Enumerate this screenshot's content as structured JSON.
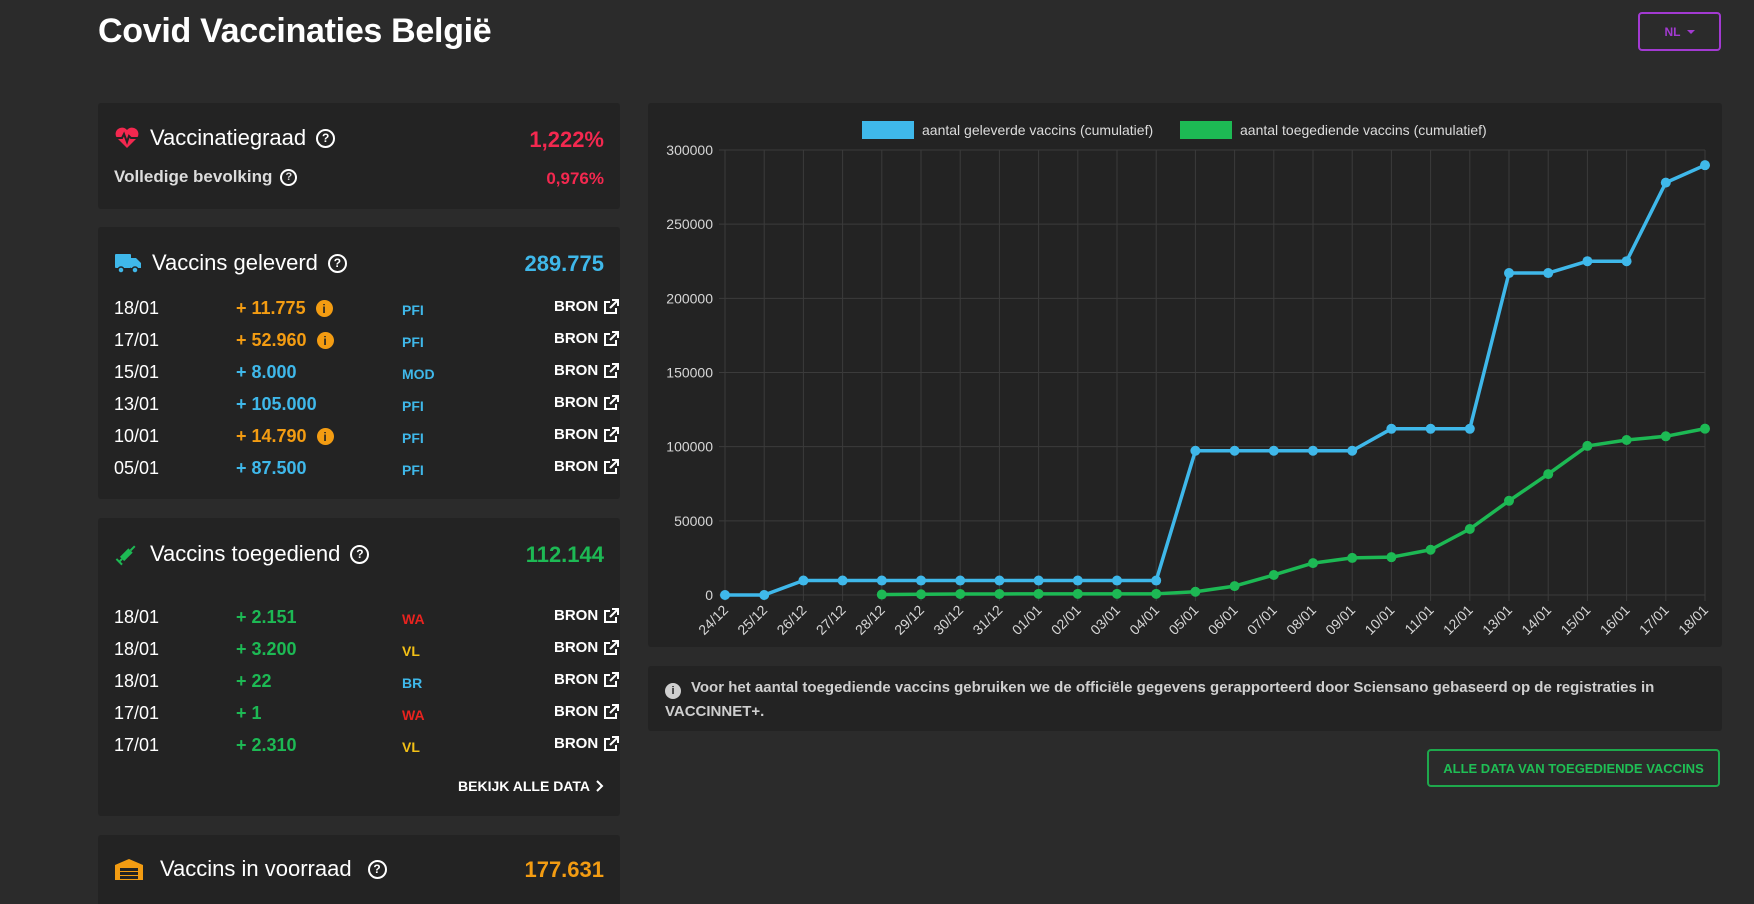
{
  "header": {
    "title": "Covid Vaccinaties België",
    "lang_label": "NL"
  },
  "colors": {
    "accent_red": "#f3284f",
    "accent_blue": "#3fb8ea",
    "accent_green": "#1db954",
    "accent_orange": "#f39c12",
    "accent_purple": "#a33ad2"
  },
  "vaccinatiegraad": {
    "title": "Vaccinatiegraad",
    "value": "1,222%",
    "sub_label": "Volledige bevolking",
    "sub_value": "0,976%",
    "icon": "heartbeat-icon"
  },
  "geleverd": {
    "title": "Vaccins geleverd",
    "value": "289.775",
    "icon": "truck-icon",
    "rows": [
      {
        "date": "18/01",
        "amount": "+ 11.775",
        "type": "PFI",
        "bron": "BRON",
        "info": true
      },
      {
        "date": "17/01",
        "amount": "+ 52.960",
        "type": "PFI",
        "bron": "BRON",
        "info": true
      },
      {
        "date": "15/01",
        "amount": "+ 8.000",
        "type": "MOD",
        "bron": "BRON",
        "info": false
      },
      {
        "date": "13/01",
        "amount": "+ 105.000",
        "type": "PFI",
        "bron": "BRON",
        "info": false
      },
      {
        "date": "10/01",
        "amount": "+ 14.790",
        "type": "PFI",
        "bron": "BRON",
        "info": true
      },
      {
        "date": "05/01",
        "amount": "+ 87.500",
        "type": "PFI",
        "bron": "BRON",
        "info": false
      }
    ]
  },
  "toegediend": {
    "title": "Vaccins toegediend",
    "value": "112.144",
    "icon": "syringe-icon",
    "rows": [
      {
        "date": "18/01",
        "amount": "+ 2.151",
        "type": "WA",
        "bron": "BRON"
      },
      {
        "date": "18/01",
        "amount": "+ 3.200",
        "type": "VL",
        "bron": "BRON"
      },
      {
        "date": "18/01",
        "amount": "+ 22",
        "type": "BR",
        "bron": "BRON"
      },
      {
        "date": "17/01",
        "amount": "+ 1",
        "type": "WA",
        "bron": "BRON"
      },
      {
        "date": "17/01",
        "amount": "+ 2.310",
        "type": "VL",
        "bron": "BRON"
      }
    ],
    "bekijk_label": "BEKIJK ALLE DATA"
  },
  "voorraad": {
    "title": "Vaccins in voorraad",
    "value": "177.631",
    "icon": "warehouse-icon"
  },
  "note": {
    "text": "Voor het aantal toegediende vaccins gebruiken we de officiële gegevens gerapporteerd door Sciensano gebaseerd op de registraties in VACCINNET+."
  },
  "all_data_button": "ALLE DATA VAN TOEGEDIENDE VACCINS",
  "type_colors": {
    "PFI": "#3fb8ea",
    "MOD": "#3fb8ea",
    "WA": "#e8231f",
    "VL": "#f3c016",
    "BR": "#3fb8ea"
  },
  "chart_data": {
    "type": "line",
    "title": "",
    "xlabel": "",
    "ylabel": "",
    "ylim": [
      0,
      300000
    ],
    "yticks": [
      "0",
      "50000",
      "100000",
      "150000",
      "200000",
      "250000",
      "300000"
    ],
    "grid": true,
    "legend_position": "top-center",
    "categories": [
      "24/12",
      "25/12",
      "26/12",
      "27/12",
      "28/12",
      "29/12",
      "30/12",
      "31/12",
      "01/01",
      "02/01",
      "03/01",
      "04/01",
      "05/01",
      "06/01",
      "07/01",
      "08/01",
      "09/01",
      "10/01",
      "11/01",
      "12/01",
      "13/01",
      "14/01",
      "15/01",
      "16/01",
      "17/01",
      "18/01"
    ],
    "series": [
      {
        "name": "aantal geleverde vaccins (cumulatief)",
        "color": "#3fb8ea",
        "values": [
          0,
          0,
          9750,
          9750,
          9750,
          9750,
          9750,
          9750,
          9750,
          9750,
          9750,
          9750,
          97250,
          97250,
          97250,
          97250,
          97250,
          112040,
          112040,
          112040,
          217040,
          217040,
          225040,
          225040,
          278000,
          289775
        ]
      },
      {
        "name": "aantal toegediende vaccins (cumulatief)",
        "color": "#1db954",
        "values": [
          null,
          null,
          null,
          null,
          300,
          500,
          700,
          700,
          800,
          800,
          800,
          800,
          2200,
          6000,
          13500,
          21500,
          25000,
          25500,
          30500,
          44500,
          63500,
          81500,
          100500,
          104500,
          107000,
          112144
        ]
      }
    ]
  }
}
